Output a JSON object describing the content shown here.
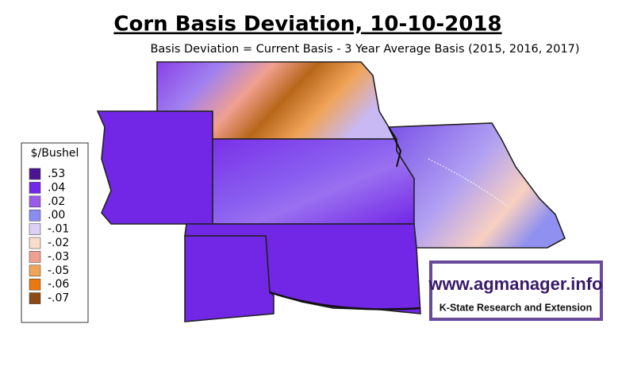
{
  "header": {
    "title": "Corn Basis Deviation, 10-10-2018",
    "subtitle": "Basis Deviation = Current Basis - 3 Year Average Basis (2015, 2016, 2017)"
  },
  "legend": {
    "title": "$/Bushel",
    "items": [
      {
        "label": ".53",
        "color": "#4b1590"
      },
      {
        "label": ".04",
        "color": "#7226e6"
      },
      {
        "label": ".02",
        "color": "#9a5ce8"
      },
      {
        "label": ".00",
        "color": "#8a8cf0"
      },
      {
        "label": "-.01",
        "color": "#dcd0f6"
      },
      {
        "label": "-.02",
        "color": "#f8dccc"
      },
      {
        "label": "-.03",
        "color": "#f0a090"
      },
      {
        "label": "-.05",
        "color": "#f0a458"
      },
      {
        "label": "-.06",
        "color": "#e87810"
      },
      {
        "label": "-.07",
        "color": "#8b4a13"
      }
    ]
  },
  "logo": {
    "url": "www.agmanager.info",
    "org": "K-State Research and Extension"
  }
}
